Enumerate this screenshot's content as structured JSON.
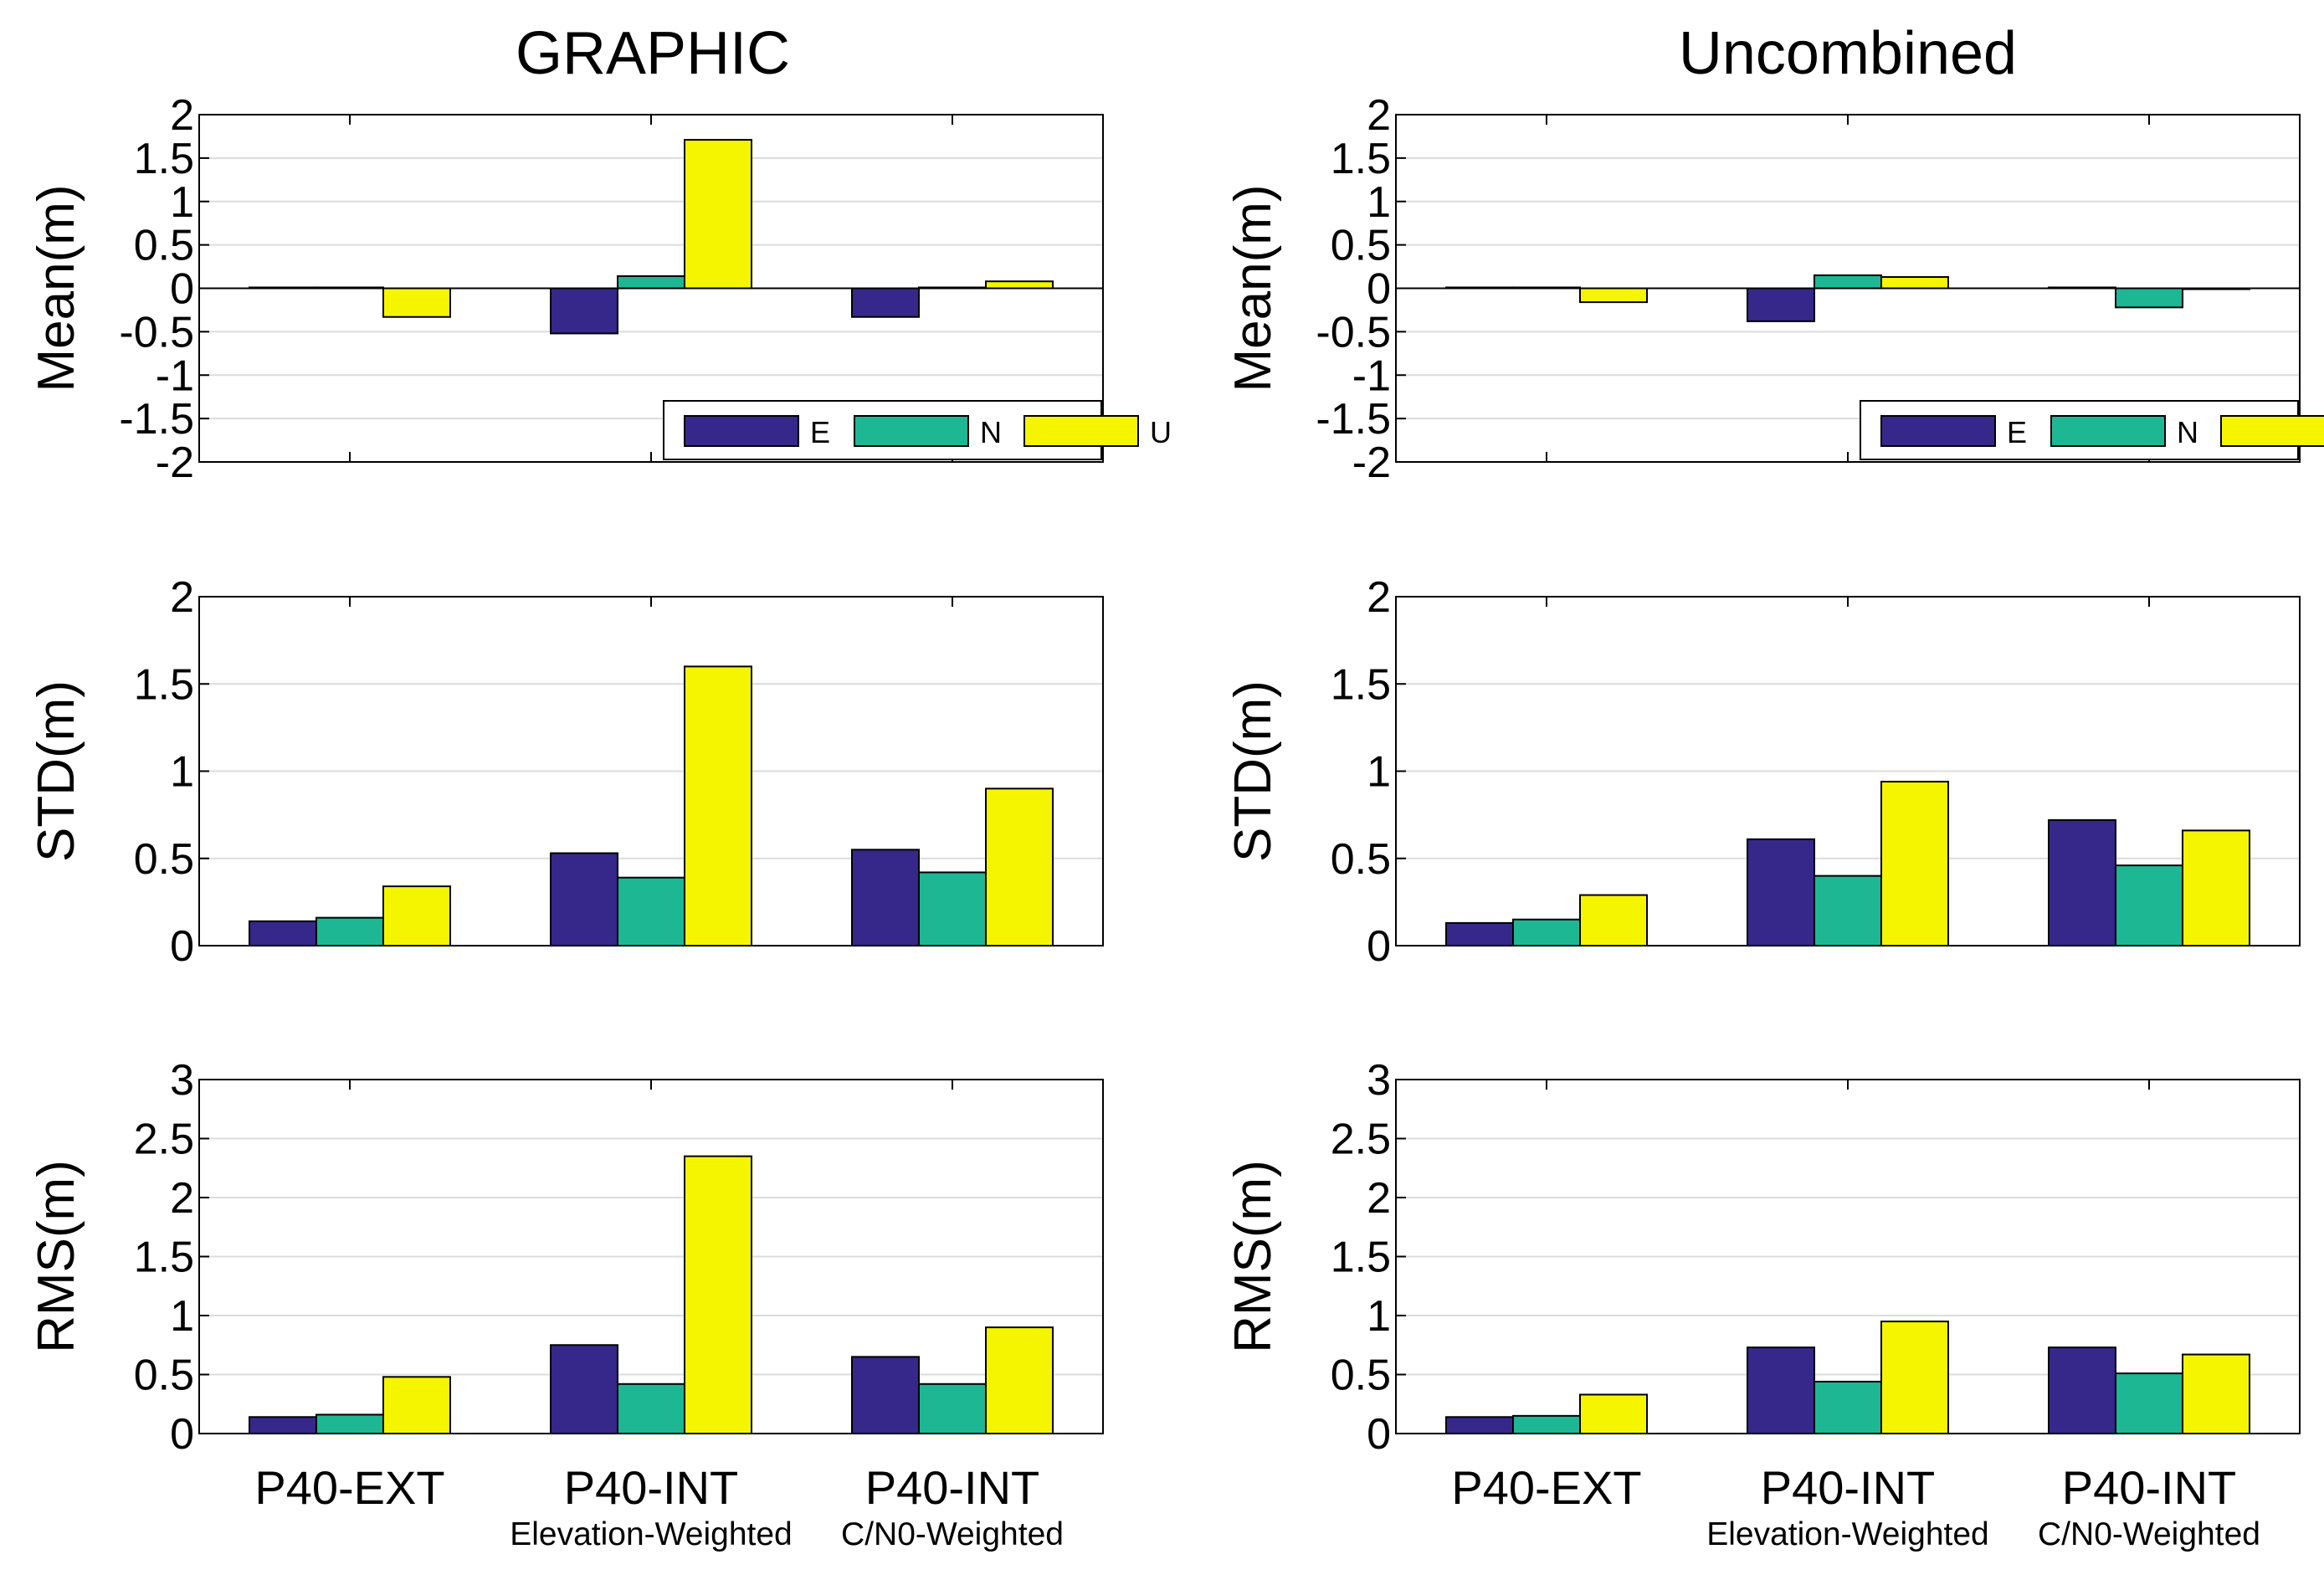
{
  "colors": {
    "E": "#35288a",
    "N": "#1db794",
    "U": "#f5f500"
  },
  "legend": {
    "entries": [
      "E",
      "N",
      "U"
    ]
  },
  "columns": [
    {
      "title": "GRAPHIC"
    },
    {
      "title": "Uncombined"
    }
  ],
  "categories": [
    {
      "label": "P40-EXT",
      "sublabel": ""
    },
    {
      "label": "P40-INT",
      "sublabel": "Elevation-Weighted"
    },
    {
      "label": "P40-INT",
      "sublabel": "C/N0-Weighted"
    }
  ],
  "chart_data": [
    {
      "type": "bar",
      "title": "GRAPHIC",
      "ylabel": "Mean(m)",
      "ylim": [
        -2,
        2
      ],
      "yticks": [
        "2",
        "1.5",
        "1",
        "0.5",
        "0",
        "-0.5",
        "-1",
        "-1.5",
        "-2"
      ],
      "categories": [
        "P40-EXT",
        "P40-INT",
        "P40-INT"
      ],
      "legend": "bottom-right",
      "grid": true,
      "series": [
        {
          "name": "E",
          "values": [
            0.01,
            -0.52,
            -0.33
          ]
        },
        {
          "name": "N",
          "values": [
            0.01,
            0.14,
            0.01
          ]
        },
        {
          "name": "U",
          "values": [
            -0.33,
            1.71,
            0.08
          ]
        }
      ]
    },
    {
      "type": "bar",
      "title": "Uncombined",
      "ylabel": "Mean(m)",
      "ylim": [
        -2,
        2
      ],
      "yticks": [
        "2",
        "1.5",
        "1",
        "0.5",
        "0",
        "-0.5",
        "-1",
        "-1.5",
        "-2"
      ],
      "categories": [
        "P40-EXT",
        "P40-INT",
        "P40-INT"
      ],
      "legend": "bottom-right",
      "grid": true,
      "series": [
        {
          "name": "E",
          "values": [
            0.01,
            -0.38,
            0.01
          ]
        },
        {
          "name": "N",
          "values": [
            0.01,
            0.15,
            -0.22
          ]
        },
        {
          "name": "U",
          "values": [
            -0.16,
            0.13,
            -0.01
          ]
        }
      ]
    },
    {
      "type": "bar",
      "ylabel": "STD(m)",
      "ylim": [
        0,
        2
      ],
      "yticks": [
        "2",
        "1.5",
        "1",
        "0.5",
        "0"
      ],
      "categories": [
        "P40-EXT",
        "P40-INT",
        "P40-INT"
      ],
      "grid": true,
      "series": [
        {
          "name": "E",
          "values": [
            0.14,
            0.53,
            0.55
          ]
        },
        {
          "name": "N",
          "values": [
            0.16,
            0.39,
            0.42
          ]
        },
        {
          "name": "U",
          "values": [
            0.34,
            1.6,
            0.9
          ]
        }
      ]
    },
    {
      "type": "bar",
      "ylabel": "STD(m)",
      "ylim": [
        0,
        2
      ],
      "yticks": [
        "2",
        "1.5",
        "1",
        "0.5",
        "0"
      ],
      "categories": [
        "P40-EXT",
        "P40-INT",
        "P40-INT"
      ],
      "grid": true,
      "series": [
        {
          "name": "E",
          "values": [
            0.13,
            0.61,
            0.72
          ]
        },
        {
          "name": "N",
          "values": [
            0.15,
            0.4,
            0.46
          ]
        },
        {
          "name": "U",
          "values": [
            0.29,
            0.94,
            0.66
          ]
        }
      ]
    },
    {
      "type": "bar",
      "ylabel": "RMS(m)",
      "ylim": [
        0,
        3
      ],
      "yticks": [
        "3",
        "2.5",
        "2",
        "1.5",
        "1",
        "0.5",
        "0"
      ],
      "categories": [
        "P40-EXT",
        "P40-INT",
        "P40-INT"
      ],
      "grid": true,
      "series": [
        {
          "name": "E",
          "values": [
            0.14,
            0.75,
            0.65
          ]
        },
        {
          "name": "N",
          "values": [
            0.16,
            0.42,
            0.42
          ]
        },
        {
          "name": "U",
          "values": [
            0.48,
            2.35,
            0.9
          ]
        }
      ]
    },
    {
      "type": "bar",
      "ylabel": "RMS(m)",
      "ylim": [
        0,
        3
      ],
      "yticks": [
        "3",
        "2.5",
        "2",
        "1.5",
        "1",
        "0.5",
        "0"
      ],
      "categories": [
        "P40-EXT",
        "P40-INT",
        "P40-INT"
      ],
      "grid": true,
      "series": [
        {
          "name": "E",
          "values": [
            0.14,
            0.73,
            0.73
          ]
        },
        {
          "name": "N",
          "values": [
            0.15,
            0.44,
            0.51
          ]
        },
        {
          "name": "U",
          "values": [
            0.33,
            0.95,
            0.67
          ]
        }
      ]
    }
  ]
}
